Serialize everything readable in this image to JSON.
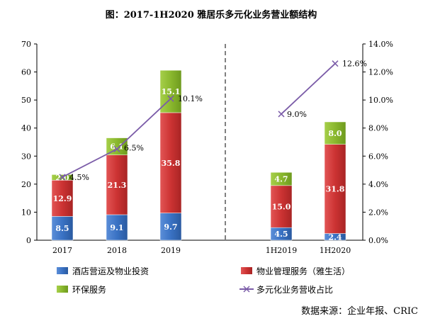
{
  "chart_data": {
    "type": "bar",
    "stacked": true,
    "title": "图：2017-1H2020 雅居乐多元化业务营业额结构",
    "source": "数据来源：企业年报、CRIC",
    "categories": [
      "2017",
      "2018",
      "2019",
      "1H2019",
      "1H2020"
    ],
    "series": [
      {
        "name": "酒店营运及物业投资",
        "color": "#3a72c4",
        "values": [
          8.5,
          9.1,
          9.7,
          4.5,
          2.4
        ]
      },
      {
        "name": "物业管理服务（雅生活）",
        "color": "#cc3333",
        "values": [
          12.9,
          21.3,
          35.8,
          15.0,
          31.8
        ]
      },
      {
        "name": "环保服务",
        "color": "#8ab82e",
        "values": [
          2.0,
          6.1,
          15.1,
          4.7,
          8.0
        ]
      }
    ],
    "line_series": {
      "name": "多元化业务营收占比",
      "color": "#7b5ca8",
      "axis": "right",
      "values": [
        4.5,
        6.5,
        10.1,
        9.0,
        12.6
      ],
      "labels": [
        "4.5%",
        "6.5%",
        "10.1%",
        "9.0%",
        "12.6%"
      ]
    },
    "y_left": {
      "min": 0,
      "max": 70,
      "ticks": [
        "0",
        "10",
        "20",
        "30",
        "40",
        "50",
        "60",
        "70"
      ]
    },
    "y_right": {
      "min": 0,
      "max": 14,
      "ticks": [
        "0.0%",
        "2.0%",
        "4.0%",
        "6.0%",
        "8.0%",
        "10.0%",
        "12.0%",
        "14.0%"
      ]
    },
    "legend_position": "bottom"
  }
}
